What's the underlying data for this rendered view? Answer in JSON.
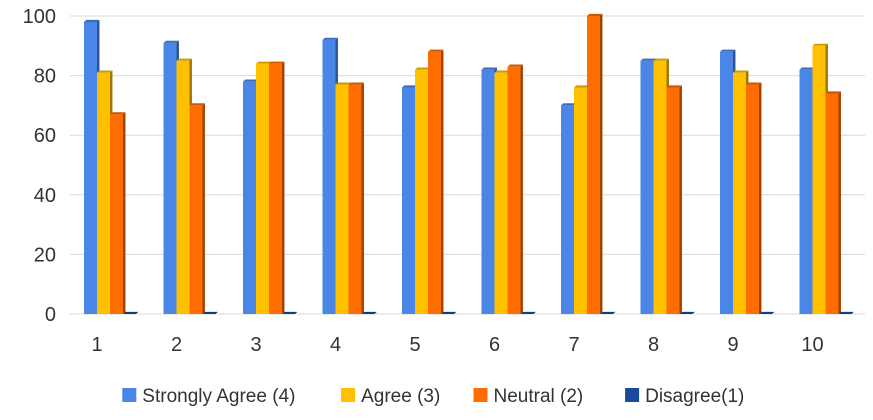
{
  "chart_data": {
    "type": "bar",
    "style": "3d-clustered-column",
    "categories": [
      "1",
      "2",
      "3",
      "4",
      "5",
      "6",
      "7",
      "8",
      "9",
      "10"
    ],
    "series": [
      {
        "name": "Strongly Agree (4)",
        "color": "#4a86e8",
        "values": [
          98,
          91,
          78,
          92,
          76,
          82,
          70,
          85,
          88,
          82
        ]
      },
      {
        "name": "Agree (3)",
        "color": "#ffc000",
        "values": [
          81,
          85,
          84,
          77,
          82,
          81,
          76,
          85,
          81,
          90
        ]
      },
      {
        "name": "Neutral (2)",
        "color": "#ff6d01",
        "values": [
          67,
          70,
          84,
          77,
          88,
          83,
          100,
          76,
          77,
          74
        ]
      },
      {
        "name": "Disagree(1)",
        "color": "#1a4aa0",
        "values": [
          0,
          0,
          0,
          0,
          0,
          0,
          0,
          0,
          0,
          0
        ]
      }
    ],
    "y_ticks": [
      0,
      20,
      40,
      60,
      80,
      100
    ],
    "ylim": [
      0,
      100
    ],
    "title": "",
    "xlabel": "",
    "ylabel": "",
    "grid": true,
    "legend_position": "bottom"
  }
}
